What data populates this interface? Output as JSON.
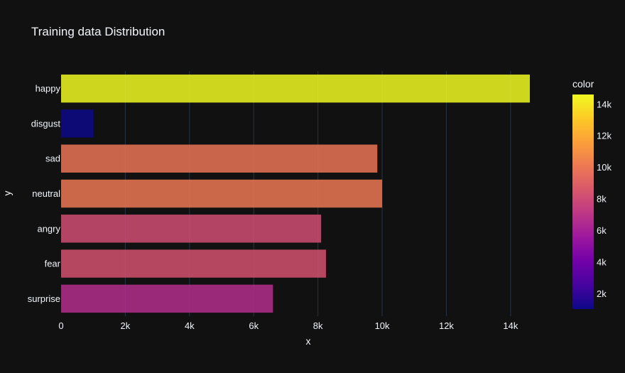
{
  "chart_data": {
    "type": "bar",
    "orientation": "horizontal",
    "title": "Training data Distribution",
    "xlabel": "x",
    "ylabel": "y",
    "xlim": [
      0,
      14600
    ],
    "x_ticks": [
      0,
      2000,
      4000,
      6000,
      8000,
      10000,
      12000,
      14000
    ],
    "x_tick_labels": [
      "0",
      "2k",
      "4k",
      "6k",
      "8k",
      "10k",
      "12k",
      "14k"
    ],
    "grid": true,
    "categories": [
      "happy",
      "disgust",
      "sad",
      "neutral",
      "angry",
      "fear",
      "surprise"
    ],
    "values": [
      14600,
      1000,
      9850,
      10000,
      8100,
      8250,
      6600
    ],
    "colorbar": {
      "title": "color",
      "range": [
        1000,
        14600
      ],
      "ticks": [
        2000,
        4000,
        6000,
        8000,
        10000,
        12000,
        14000
      ],
      "tick_labels": [
        "2k",
        "4k",
        "6k",
        "8k",
        "10k",
        "12k",
        "14k"
      ],
      "colorscale": [
        "#0d0887",
        "#46039f",
        "#7201a8",
        "#9c179e",
        "#bd3786",
        "#d8576b",
        "#ed7953",
        "#fb9f3a",
        "#fdca26",
        "#f0f921"
      ]
    }
  },
  "colors": {
    "background": "#111111",
    "grid": "#283442",
    "text": "#f2f5fa"
  }
}
